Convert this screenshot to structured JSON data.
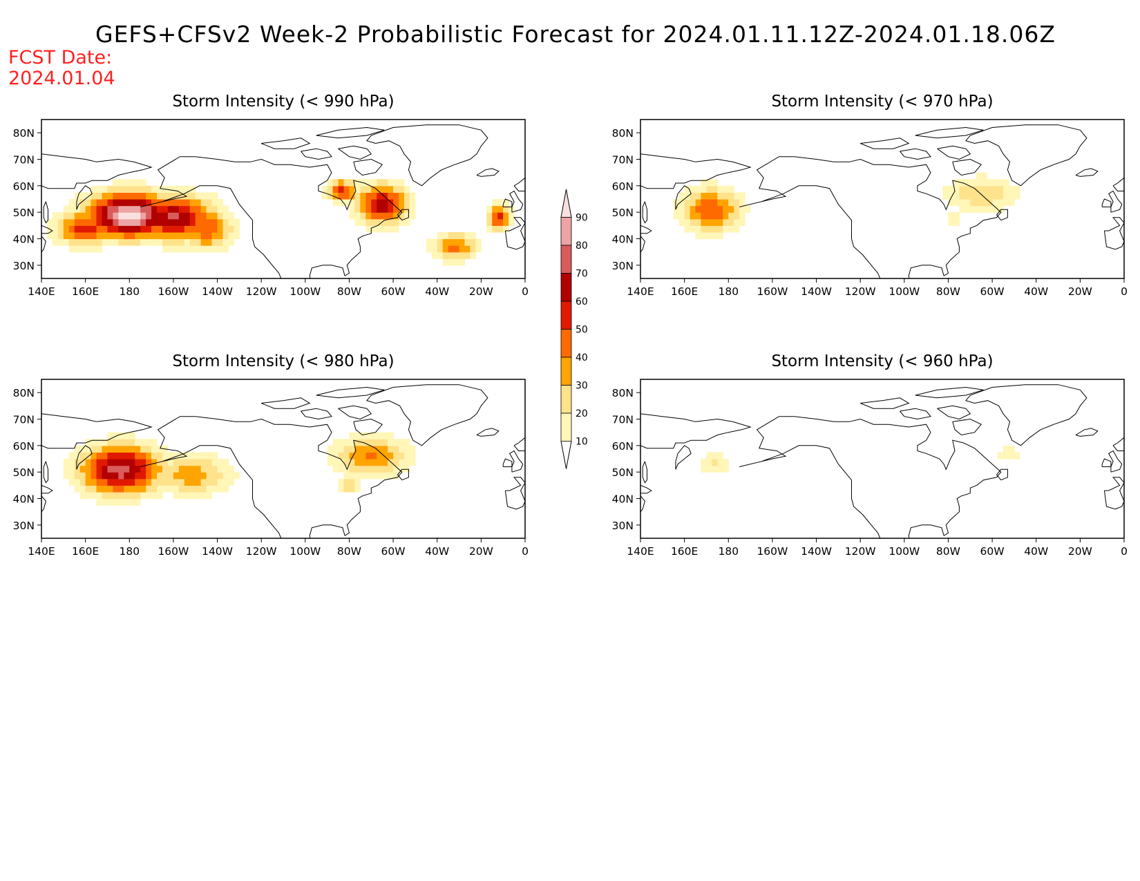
{
  "title": "GEFS+CFSv2 Week-2 Probabilistic Forecast for 2024.01.11.12Z-2024.01.18.06Z",
  "fcst_label": "FCST Date:",
  "fcst_date": "2024.01.04",
  "colors": {
    "title": "#000000",
    "fcst": "#ff2020",
    "coast": "#000000"
  },
  "colorbar": {
    "levels": [
      10,
      20,
      30,
      40,
      50,
      60,
      70,
      80,
      90
    ],
    "level_labels": [
      "10",
      "20",
      "30",
      "40",
      "50",
      "60",
      "70",
      "80",
      "90"
    ],
    "colors": [
      "#fff6b8",
      "#ffe28c",
      "#ffa400",
      "#ff6a00",
      "#e01a00",
      "#b20000",
      "#d85c5c",
      "#eca4a4",
      "#fbe0e0"
    ]
  },
  "chart_data": [
    {
      "type": "map",
      "title": "Storm Intensity (< 990 hPa)",
      "x_tick_labels": [
        "140E",
        "160E",
        "180",
        "160W",
        "140W",
        "120W",
        "100W",
        "80W",
        "60W",
        "40W",
        "20W",
        "0"
      ],
      "y_tick_labels": [
        "80N",
        "70N",
        "60N",
        "50N",
        "40N",
        "30N"
      ],
      "lon_range": [
        140,
        360
      ],
      "lat_range": [
        25,
        85
      ],
      "blobs": [
        {
          "lon": 180,
          "lat": 49,
          "rlon": 23,
          "rlat": 10,
          "p": 95
        },
        {
          "lon": 200,
          "lat": 48,
          "rlon": 22,
          "rlat": 10,
          "p": 72
        },
        {
          "lon": 160,
          "lat": 44,
          "rlon": 16,
          "rlat": 8,
          "p": 55
        },
        {
          "lon": 215,
          "lat": 44,
          "rlon": 14,
          "rlat": 9,
          "p": 50
        },
        {
          "lon": 295,
          "lat": 53,
          "rlon": 14,
          "rlat": 9,
          "p": 66
        },
        {
          "lon": 277,
          "lat": 58,
          "rlon": 8,
          "rlat": 5,
          "p": 55
        },
        {
          "lon": 328,
          "lat": 37,
          "rlon": 12,
          "rlat": 6,
          "p": 45
        },
        {
          "lon": 348,
          "lat": 48,
          "rlon": 6,
          "rlat": 6,
          "p": 55
        }
      ]
    },
    {
      "type": "map",
      "title": "Storm Intensity (< 970 hPa)",
      "x_tick_labels": [
        "140E",
        "160E",
        "180",
        "160W",
        "140W",
        "120W",
        "100W",
        "80W",
        "60W",
        "40W",
        "20W",
        "0"
      ],
      "y_tick_labels": [
        "80N",
        "70N",
        "60N",
        "50N",
        "40N",
        "30N"
      ],
      "lon_range": [
        140,
        360
      ],
      "lat_range": [
        25,
        85
      ],
      "blobs": [
        {
          "lon": 172,
          "lat": 51,
          "rlon": 16,
          "rlat": 10,
          "p": 48
        },
        {
          "lon": 295,
          "lat": 57,
          "rlon": 20,
          "rlat": 8,
          "p": 28
        },
        {
          "lon": 282,
          "lat": 47,
          "rlon": 5,
          "rlat": 4,
          "p": 18
        }
      ]
    },
    {
      "type": "map",
      "title": "Storm Intensity (< 980 hPa)",
      "x_tick_labels": [
        "140E",
        "160E",
        "180",
        "160W",
        "140W",
        "120W",
        "100W",
        "80W",
        "60W",
        "40W",
        "20W",
        "0"
      ],
      "y_tick_labels": [
        "80N",
        "70N",
        "60N",
        "50N",
        "40N",
        "30N"
      ],
      "lon_range": [
        140,
        360
      ],
      "lat_range": [
        25,
        85
      ],
      "blobs": [
        {
          "lon": 176,
          "lat": 51,
          "rlon": 22,
          "rlat": 11,
          "p": 75
        },
        {
          "lon": 208,
          "lat": 49,
          "rlon": 22,
          "rlat": 9,
          "p": 36
        },
        {
          "lon": 290,
          "lat": 56,
          "rlon": 20,
          "rlat": 9,
          "p": 42
        },
        {
          "lon": 281,
          "lat": 45,
          "rlon": 6,
          "rlat": 4,
          "p": 28
        }
      ]
    },
    {
      "type": "map",
      "title": "Storm Intensity (< 960 hPa)",
      "x_tick_labels": [
        "140E",
        "160E",
        "180",
        "160W",
        "140W",
        "120W",
        "100W",
        "80W",
        "60W",
        "40W",
        "20W",
        "0"
      ],
      "y_tick_labels": [
        "80N",
        "70N",
        "60N",
        "50N",
        "40N",
        "30N"
      ],
      "lon_range": [
        140,
        360
      ],
      "lat_range": [
        25,
        85
      ],
      "blobs": [
        {
          "lon": 174,
          "lat": 53,
          "rlon": 9,
          "rlat": 5,
          "p": 22
        },
        {
          "lon": 308,
          "lat": 57,
          "rlon": 8,
          "rlat": 4,
          "p": 16
        }
      ]
    }
  ]
}
